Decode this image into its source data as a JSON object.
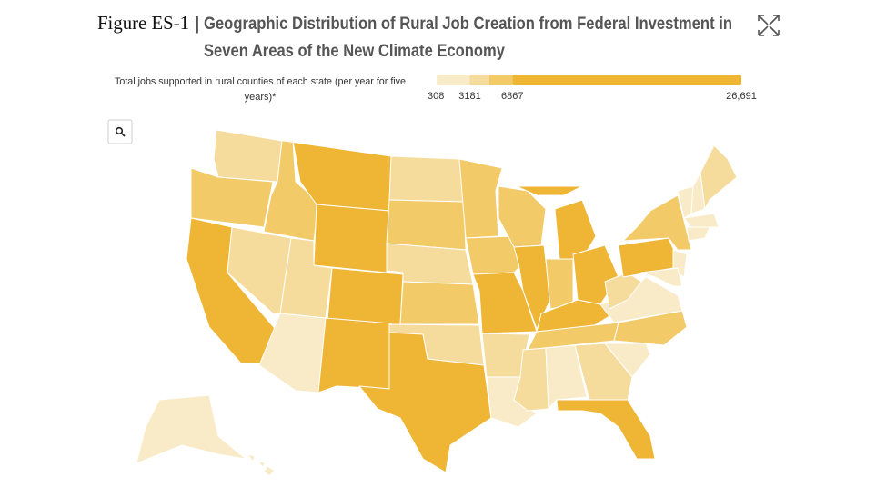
{
  "header": {
    "figure_label": "Figure ES-1",
    "separator": "|",
    "title": [
      "Geographic Distribution of Rural Job Creation from Federal Investment in",
      "Seven Areas of the New Climate Economy"
    ]
  },
  "legend": {
    "label": [
      "Total jobs supported in rural counties of each state (per year for five",
      "years)*"
    ],
    "edges": [
      308,
      3181,
      4850,
      6867,
      26691
    ],
    "colors": [
      "#f9ebc8",
      "#f6dc9c",
      "#f2ca68",
      "#efb636"
    ],
    "ticks": [
      308,
      3181,
      6867,
      {
        "value": 26691,
        "label": "26,691"
      }
    ]
  },
  "regions": [
    {
      "color": "#f6dc9c"
    },
    {
      "color": "#f2ca68"
    },
    {
      "color": "#efb636"
    },
    {
      "color": "#f6dc9c"
    },
    {
      "color": "#f2ca68"
    },
    {
      "color": "#efb636"
    },
    {
      "color": "#efb636"
    },
    {
      "color": "#f6dc9c"
    },
    {
      "color": "#efb636"
    },
    {
      "color": "#f9ebc8"
    },
    {
      "color": "#efb636"
    },
    {
      "color": "#f6dc9c"
    },
    {
      "color": "#f2ca68"
    },
    {
      "color": "#f6dc9c"
    },
    {
      "color": "#f2ca68"
    },
    {
      "color": "#f6dc9c"
    },
    {
      "color": "#efb636"
    },
    {
      "color": "#f2ca68"
    },
    {
      "color": "#f2ca68"
    },
    {
      "color": "#efb636"
    },
    {
      "color": "#f6dc9c"
    },
    {
      "color": "#f9ebc8"
    },
    {
      "color": "#f2ca68"
    },
    {
      "color": "#efb636"
    },
    {
      "color": "#efb636"
    },
    {
      "color": "#efb636"
    },
    {
      "color": "#f2ca68"
    },
    {
      "color": "#efb636"
    },
    {
      "color": "#efb636"
    },
    {
      "color": "#f2ca68"
    },
    {
      "color": "#f6dc9c"
    },
    {
      "color": "#f9ebc8"
    },
    {
      "color": "#f6dc9c"
    },
    {
      "color": "#efb636"
    },
    {
      "color": "#f9ebc8"
    },
    {
      "color": "#f2ca68"
    },
    {
      "color": "#f9ebc8"
    },
    {
      "color": "#f6dc9c"
    },
    {
      "color": "#efb636"
    },
    {
      "color": "#f2ca68"
    },
    {
      "color": "#f9ebc8"
    },
    {
      "color": "#f9ebc8"
    },
    {
      "color": "#f9ebc8"
    },
    {
      "color": "#f9ebc8"
    },
    {
      "color": "#f6dc9c"
    },
    {
      "color": "#f9ebc8"
    },
    {
      "color": "#f9ebc8"
    },
    {
      "color": "#f9ebc8"
    },
    {
      "color": "#f9ebc8"
    },
    {
      "color": "#f9ebc8"
    },
    {
      "color": "#f9ebc8"
    }
  ]
}
